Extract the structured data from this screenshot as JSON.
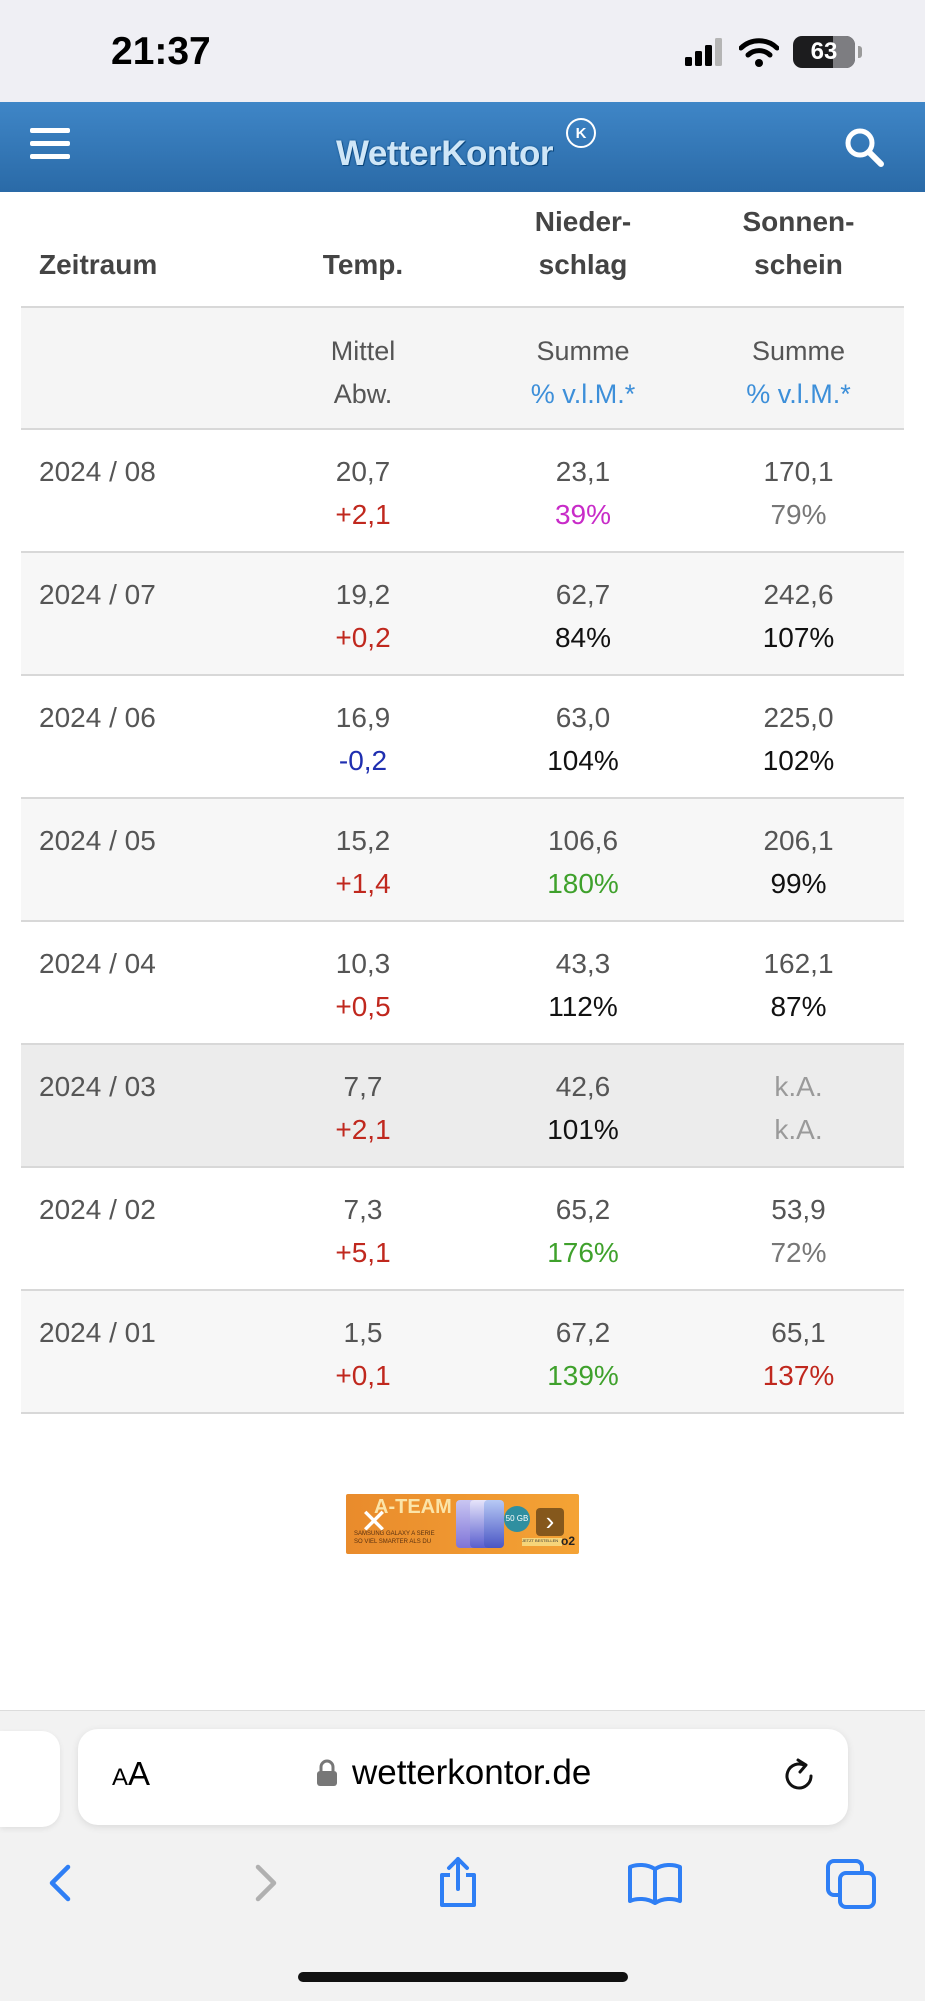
{
  "status_bar": {
    "time": "21:37",
    "battery": "63"
  },
  "header": {
    "logo_text": "WetterKontor",
    "logo_mark": "K"
  },
  "table": {
    "headers": {
      "zeitraum": "Zeitraum",
      "temp": "Temp.",
      "niederschlag_1": "Nieder-",
      "niederschlag_2": "schlag",
      "sonnenschein_1": "Sonnen-",
      "sonnenschein_2": "schein"
    },
    "subheaders": {
      "temp_1": "Mittel",
      "temp_2": "Abw.",
      "nied_1": "Summe",
      "nied_2": "% v.l.M.*",
      "sonne_1": "Summe",
      "sonne_2": "% v.l.M.*"
    },
    "rows": [
      {
        "period": "2024 / 08",
        "temp": "20,7",
        "temp_dev": "+2,1",
        "rain": "23,1",
        "rain_pct": "39%",
        "sun": "170,1",
        "sun_pct": "79%"
      },
      {
        "period": "2024 / 07",
        "temp": "19,2",
        "temp_dev": "+0,2",
        "rain": "62,7",
        "rain_pct": "84%",
        "sun": "242,6",
        "sun_pct": "107%"
      },
      {
        "period": "2024 / 06",
        "temp": "16,9",
        "temp_dev": "-0,2",
        "rain": "63,0",
        "rain_pct": "104%",
        "sun": "225,0",
        "sun_pct": "102%"
      },
      {
        "period": "2024 / 05",
        "temp": "15,2",
        "temp_dev": "+1,4",
        "rain": "106,6",
        "rain_pct": "180%",
        "sun": "206,1",
        "sun_pct": "99%"
      },
      {
        "period": "2024 / 04",
        "temp": "10,3",
        "temp_dev": "+0,5",
        "rain": "43,3",
        "rain_pct": "112%",
        "sun": "162,1",
        "sun_pct": "87%"
      },
      {
        "period": "2024 / 03",
        "temp": "7,7",
        "temp_dev": "+2,1",
        "rain": "42,6",
        "rain_pct": "101%",
        "sun": "k.A.",
        "sun_pct": "k.A."
      },
      {
        "period": "2024 / 02",
        "temp": "7,3",
        "temp_dev": "+5,1",
        "rain": "65,2",
        "rain_pct": "176%",
        "sun": "53,9",
        "sun_pct": "72%"
      },
      {
        "period": "2024 / 01",
        "temp": "1,5",
        "temp_dev": "+0,1",
        "rain": "67,2",
        "rain_pct": "139%",
        "sun": "65,1",
        "sun_pct": "137%"
      }
    ]
  },
  "ad": {
    "title": "A-TEAM",
    "badge": "50 GB",
    "small_1": "SAMSUNG GALAXY A SERIE",
    "small_2": "SO VIEL SMARTER ALS DU",
    "cta": "JETZT BESTELLEN",
    "brand": "o2"
  },
  "browser": {
    "aa_label": "AA",
    "url": "wetterkontor.de"
  },
  "colors": {
    "header_blue": "#2f74b5",
    "link_blue": "#3d8fd9",
    "temp_up": "#c0281e",
    "temp_down": "#1f2fb0",
    "dry_magenta": "#c82bc8",
    "wet_green": "#3fa12c",
    "na_gray": "#9a9a9a",
    "high_sun_red": "#c0281e"
  }
}
